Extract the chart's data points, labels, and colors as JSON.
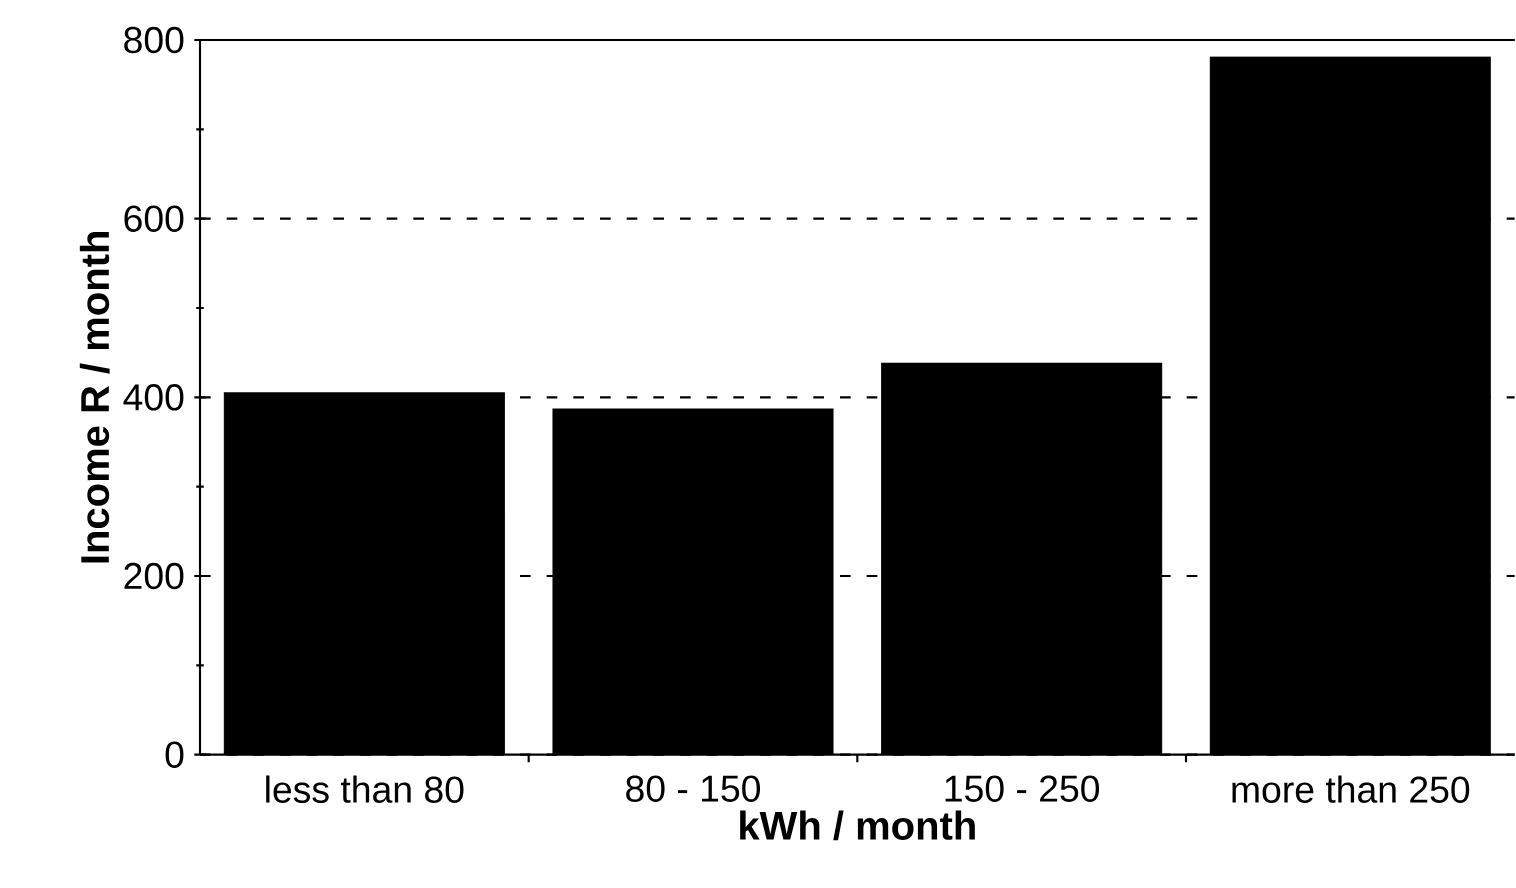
{
  "chart_data": {
    "type": "bar",
    "xlabel": "kWh / month",
    "ylabel": "Income R / month",
    "categories": [
      "less than 80",
      "80 - 150",
      "150 - 250",
      "more than 250"
    ],
    "values": [
      405,
      387,
      438,
      781
    ],
    "color": "#000000",
    "ylim": [
      0,
      800
    ],
    "yticks": [
      0,
      200,
      400,
      600,
      800
    ],
    "grid": "y"
  }
}
